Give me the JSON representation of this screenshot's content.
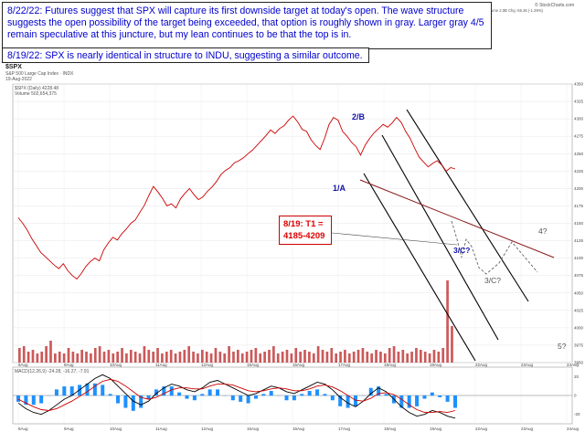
{
  "header": {
    "symbol": "$SPX",
    "description": "S&P 500 Large Cap Index · INDX",
    "date": "19-Aug-2022",
    "ohlc": "Open 4266.31  High 4266.31  Low 4218.70  Close 4228.48  Volume 2.0B  Chg -55.26 (-1.29%)",
    "watermark": "© StockCharts.com",
    "main_legend": "$SPX (Daily) 4228.48",
    "volume_legend": "Volume 502,654,375",
    "macd_legend": "MACD(12,26,9) -24.28, -16.27, -7.91"
  },
  "annotations": {
    "note1": "8/22/22:  Futures suggest that SPX will capture its first downside target at today's open.  The wave structure suggests the open possibility of the target being exceeded, that option is roughly shown in gray.  Larger gray 4/5 remain speculative at this juncture, but my lean continues to be that the top is in.",
    "note2": "8/19/22:  SPX is nearly identical in structure to INDU, suggesting a similar outcome.",
    "target_box": "8/19: T1 = 4185-4209",
    "wave_1a": "1/A",
    "wave_2b": "2/B",
    "wave_3c": "3/C?",
    "wave_3c_gray": "3/C?",
    "wave_4_gray": "4?",
    "wave_5_gray": "5?"
  },
  "colors": {
    "note_text": "#0000cc",
    "price_line": "#cc0000",
    "wave_labels": "#1111aa",
    "target_text": "#dd0000",
    "channel": "#000000",
    "gray_path": "#888888",
    "volume": "#bb2222",
    "macd": "#000000",
    "signal": "#cc0000",
    "histogram": "#1e90ff"
  },
  "chart_data": {
    "type": "line",
    "title": "$SPX S&P 500 Large Cap Index",
    "price_axis": {
      "ylim": [
        3950,
        4350
      ],
      "ticks": [
        3950,
        3975,
        4000,
        4025,
        4050,
        4075,
        4100,
        4125,
        4150,
        4175,
        4200,
        4225,
        4250,
        4275,
        4300,
        4325,
        4350
      ]
    },
    "x_ticks": [
      "8Aug",
      "9Aug",
      "10Aug",
      "11Aug",
      "12Aug",
      "15Aug",
      "16Aug",
      "17Aug",
      "18Aug",
      "19Aug",
      "22Aug",
      "23Aug",
      "24Aug"
    ],
    "series": [
      {
        "name": "SPX 15-min",
        "values": [
          4158,
          4150,
          4140,
          4128,
          4118,
          4108,
          4102,
          4096,
          4090,
          4085,
          4092,
          4082,
          4075,
          4070,
          4078,
          4088,
          4095,
          4100,
          4096,
          4112,
          4122,
          4130,
          4126,
          4135,
          4142,
          4150,
          4155,
          4166,
          4176,
          4190,
          4203,
          4195,
          4186,
          4175,
          4178,
          4172,
          4185,
          4193,
          4200,
          4191,
          4184,
          4188,
          4196,
          4202,
          4210,
          4220,
          4226,
          4230,
          4237,
          4240,
          4244,
          4250,
          4255,
          4262,
          4269,
          4276,
          4284,
          4279,
          4286,
          4290,
          4298,
          4304,
          4296,
          4285,
          4282,
          4270,
          4262,
          4256,
          4272,
          4292,
          4302,
          4298,
          4282,
          4275,
          4266,
          4260,
          4248,
          4262,
          4272,
          4280,
          4286,
          4292,
          4288,
          4294,
          4302,
          4295,
          4282,
          4272,
          4258,
          4245,
          4238,
          4231,
          4236,
          4240,
          4234,
          4225,
          4230,
          4228
        ]
      }
    ],
    "projected_path": [
      {
        "point": "4228 now",
        "value": 4228
      },
      {
        "point": "3/C? target",
        "value": 4192
      },
      {
        "point": "3/C? gray",
        "value": 4150
      },
      {
        "point": "4? gray",
        "value": 4225
      },
      {
        "point": "5? gray",
        "value": 4120
      }
    ],
    "volume": {
      "name": "Volume",
      "values": [
        8,
        9,
        6,
        7,
        5,
        6,
        9,
        12,
        5,
        6,
        5,
        8,
        6,
        5,
        7,
        6,
        5,
        8,
        9,
        6,
        7,
        5,
        6,
        8,
        5,
        7,
        6,
        5,
        9,
        7,
        6,
        8,
        5,
        6,
        7,
        5,
        6,
        7,
        9,
        6,
        5,
        7,
        6,
        5,
        8,
        6,
        5,
        9,
        6,
        7,
        5,
        6,
        7,
        8,
        5,
        6,
        7,
        9,
        5,
        6,
        7,
        5,
        8,
        6,
        7,
        6,
        5,
        9,
        7,
        6,
        8,
        5,
        6,
        7,
        5,
        6,
        7,
        8,
        6,
        5,
        7,
        6,
        5,
        8,
        9,
        6,
        7,
        5,
        6,
        8,
        7,
        6,
        5,
        7,
        6,
        8,
        45,
        20
      ]
    },
    "macd": {
      "legend": "MACD(12,26,9)",
      "ylim": [
        -30,
        30
      ],
      "macd_line": [
        -8,
        -14,
        -18,
        -20,
        -16,
        -10,
        -4,
        0,
        6,
        12,
        18,
        22,
        18,
        10,
        2,
        -6,
        -10,
        -6,
        2,
        8,
        12,
        10,
        6,
        4,
        8,
        14,
        16,
        12,
        8,
        4,
        0,
        2,
        6,
        10,
        8,
        4,
        2,
        6,
        10,
        14,
        12,
        6,
        -2,
        -8,
        -12,
        -6,
        2,
        8,
        4,
        -4,
        -12,
        -18,
        -22,
        -20,
        -16,
        -18,
        -22,
        -24
      ],
      "signal_line": [
        -4,
        -8,
        -12,
        -15,
        -16,
        -14,
        -10,
        -6,
        -1,
        4,
        10,
        15,
        17,
        15,
        10,
        4,
        -2,
        -4,
        -2,
        2,
        6,
        8,
        8,
        7,
        7,
        10,
        12,
        12,
        11,
        8,
        5,
        4,
        5,
        7,
        8,
        7,
        5,
        5,
        7,
        10,
        11,
        9,
        5,
        0,
        -5,
        -6,
        -3,
        2,
        3,
        1,
        -4,
        -10,
        -15,
        -18,
        -18,
        -17,
        -18,
        -16
      ]
    }
  }
}
